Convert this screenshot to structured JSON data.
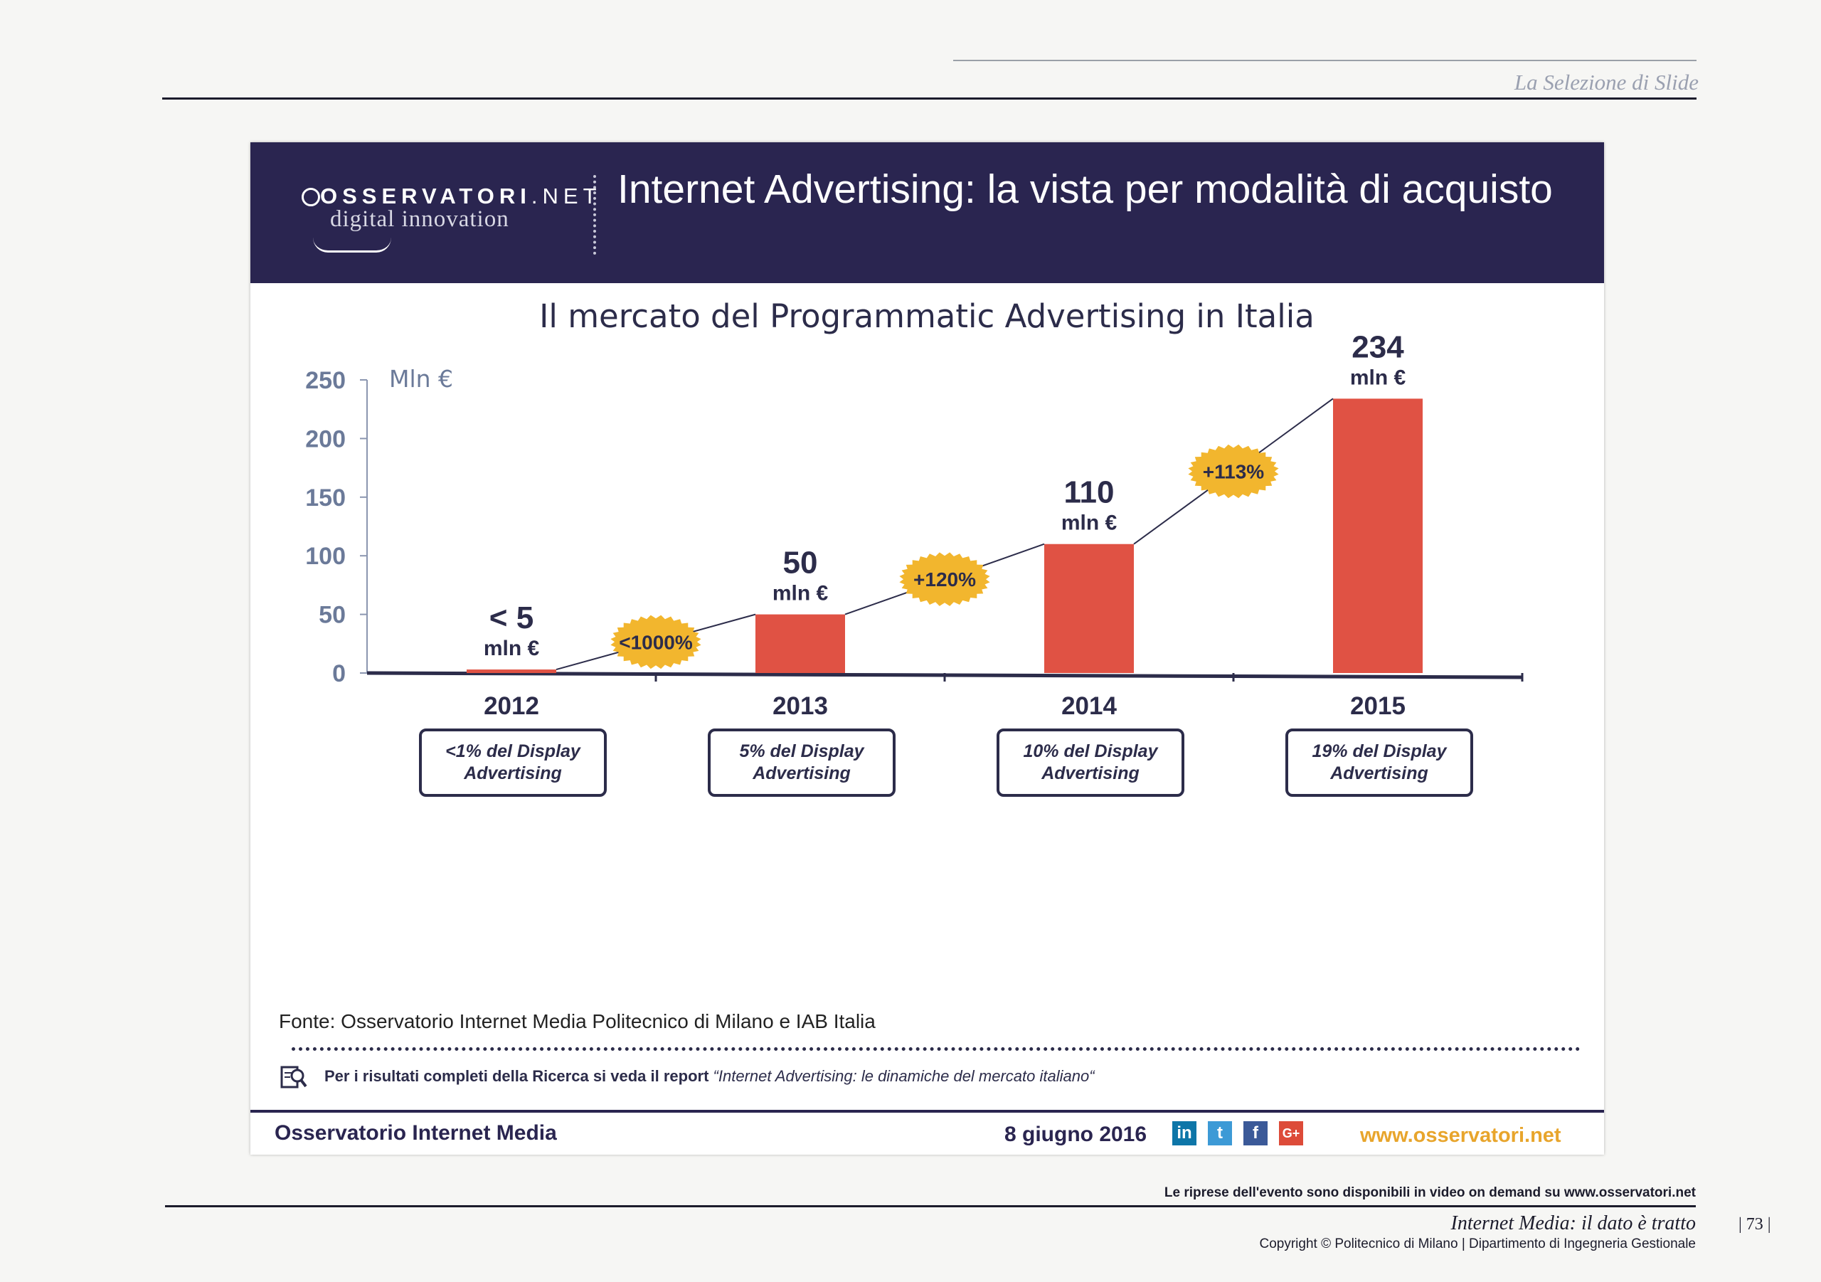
{
  "page": {
    "section_header": "La Selezione di Slide",
    "bottom_note": "Le riprese dell'evento sono disponibili in video on demand su www.osservatori.net",
    "bottom_title": "Internet Media: il dato è tratto",
    "copyright": "Copyright © Politecnico di Milano | Dipartimento di Ingegneria Gestionale",
    "page_number": "| 73 |"
  },
  "slide": {
    "logo_line1": "OSSERVATORI",
    "logo_line1b": ".NET",
    "logo_line2": "digital innovation",
    "title": "Internet Advertising: la vista per modalità di acquisto",
    "source": "Fonte: Osservatorio Internet Media Politecnico di Milano e IAB Italia",
    "report_note_bold": "Per i risultati completi della Ricerca si veda il report ",
    "report_note_italic": "“Internet Advertising: le dinamiche del mercato italiano“",
    "footer_left": "Osservatorio Internet Media",
    "footer_date": "8 giugno 2016",
    "footer_url": "www.osservatori.net",
    "social_icons": [
      "linkedin-icon",
      "twitter-icon",
      "facebook-icon",
      "google-plus-icon"
    ],
    "social_labels": [
      "in",
      "t",
      "f",
      "G+"
    ]
  },
  "colors": {
    "header_bg": "#2a2550",
    "bar": "#e05244",
    "badge": "#f2b62e",
    "axis_text": "#6b7a99",
    "url": "#e8a52c"
  },
  "chart_data": {
    "type": "bar",
    "title": "Il mercato del Programmatic Advertising in Italia",
    "ylabel": "Mln €",
    "ylim": [
      0,
      250
    ],
    "yticks": [
      0,
      50,
      100,
      150,
      200,
      250
    ],
    "categories": [
      "2012",
      "2013",
      "2014",
      "2015"
    ],
    "values": [
      3,
      50,
      110,
      234
    ],
    "value_labels": [
      "< 5",
      "50",
      "110",
      "234"
    ],
    "unit_label": "mln €",
    "growth_labels": [
      "<1000%",
      "+120%",
      "+113%"
    ],
    "share_notes": [
      "<1% del Display Advertising",
      "5% del Display Advertising",
      "10% del Display Advertising",
      "19% del Display Advertising"
    ]
  }
}
